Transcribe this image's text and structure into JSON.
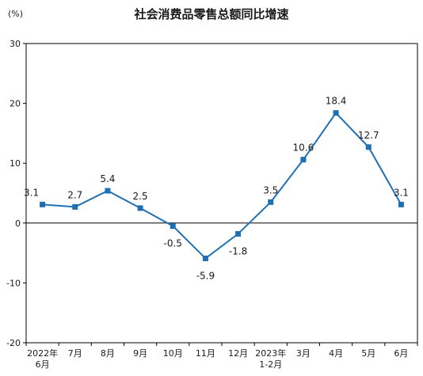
{
  "chart_data": {
    "type": "line",
    "title": "社会消费品零售总额同比增速",
    "unit": "(%)",
    "categories": [
      [
        "2022年",
        "6月"
      ],
      [
        "7月"
      ],
      [
        "8月"
      ],
      [
        "9月"
      ],
      [
        "10月"
      ],
      [
        "11月"
      ],
      [
        "12月"
      ],
      [
        "2023年",
        "1-2月"
      ],
      [
        "3月"
      ],
      [
        "4月"
      ],
      [
        "5月"
      ],
      [
        "6月"
      ]
    ],
    "values": [
      3.1,
      2.7,
      5.4,
      2.5,
      -0.5,
      -5.9,
      -1.8,
      3.5,
      10.6,
      18.4,
      12.7,
      3.1
    ],
    "data_labels": [
      "3.1",
      "2.7",
      "5.4",
      "2.5",
      "-0.5",
      "-5.9",
      "-1.8",
      "3.5",
      "10.6",
      "18.4",
      "12.7",
      "3.1"
    ],
    "ylim": [
      -20,
      30
    ],
    "yticks": [
      -20,
      -10,
      0,
      10,
      20,
      30
    ],
    "grid": false,
    "line_color": "#1f6fb4"
  }
}
